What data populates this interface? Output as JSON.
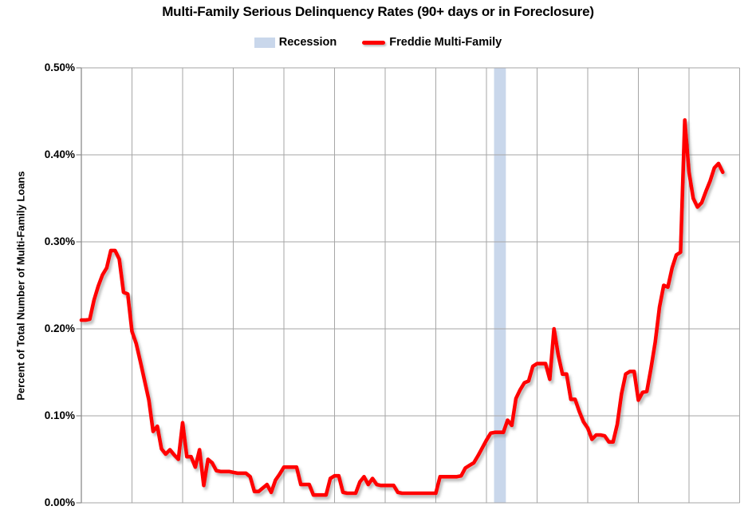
{
  "title": "Multi-Family Serious Delinquency Rates (90+ days or in Foreclosure)",
  "legend": {
    "recession_label": "Recession",
    "series_label": "Freddie Multi-Family"
  },
  "y_axis": {
    "title": "Percent of Total Number of Multi-Family Loans",
    "tick_labels": [
      "0.50%",
      "0.40%",
      "0.30%",
      "0.20%",
      "0.10%",
      "0.00%"
    ]
  },
  "colors": {
    "series_line": "#ff0000",
    "recession_band": "#c9d7eb",
    "gridline": "#a6a6a6",
    "axis_line": "#8c8c8c",
    "text": "#000000",
    "background": "#ffffff"
  },
  "chart_data": {
    "type": "line",
    "title": "Multi-Family Serious Delinquency Rates (90+ days or in Foreclosure)",
    "ylabel": "Percent of Total Number of Multi-Family Loans",
    "y_unit": "percent",
    "ylim": [
      0.0,
      0.5
    ],
    "y_tick_step": 0.1,
    "x_axis_labels_visible": false,
    "x_span_months": 156,
    "x_gridline_every_months": 12,
    "grid": true,
    "legend_position": "top",
    "series": [
      {
        "name": "Freddie Multi-Family",
        "color": "#ff0000",
        "cadence": "monthly",
        "values_pct": [
          0.21,
          0.21,
          0.211,
          0.233,
          0.249,
          0.262,
          0.27,
          0.29,
          0.29,
          0.28,
          0.242,
          0.24,
          0.197,
          0.183,
          0.162,
          0.14,
          0.118,
          0.082,
          0.088,
          0.062,
          0.056,
          0.061,
          0.055,
          0.05,
          0.092,
          0.053,
          0.053,
          0.041,
          0.061,
          0.02,
          0.05,
          0.046,
          0.037,
          0.036,
          0.036,
          0.036,
          0.035,
          0.034,
          0.034,
          0.034,
          0.03,
          0.013,
          0.013,
          0.017,
          0.021,
          0.012,
          0.026,
          0.033,
          0.041,
          0.041,
          0.041,
          0.041,
          0.021,
          0.021,
          0.021,
          0.009,
          0.009,
          0.009,
          0.009,
          0.028,
          0.031,
          0.031,
          0.012,
          0.011,
          0.011,
          0.011,
          0.024,
          0.03,
          0.021,
          0.028,
          0.021,
          0.02,
          0.02,
          0.02,
          0.02,
          0.012,
          0.011,
          0.011,
          0.011,
          0.011,
          0.011,
          0.011,
          0.011,
          0.011,
          0.011,
          0.03,
          0.03,
          0.03,
          0.03,
          0.03,
          0.031,
          0.04,
          0.043,
          0.046,
          0.054,
          0.063,
          0.072,
          0.08,
          0.081,
          0.081,
          0.081,
          0.095,
          0.089,
          0.12,
          0.13,
          0.138,
          0.14,
          0.157,
          0.16,
          0.16,
          0.16,
          0.142,
          0.2,
          0.17,
          0.148,
          0.148,
          0.119,
          0.119,
          0.105,
          0.093,
          0.086,
          0.073,
          0.078,
          0.078,
          0.077,
          0.07,
          0.07,
          0.09,
          0.125,
          0.148,
          0.151,
          0.151,
          0.118,
          0.127,
          0.128,
          0.155,
          0.185,
          0.225,
          0.25,
          0.248,
          0.27,
          0.285,
          0.288,
          0.44,
          0.38,
          0.35,
          0.34,
          0.345,
          0.358,
          0.37,
          0.385,
          0.39,
          0.38
        ]
      }
    ],
    "recession_bands": [
      {
        "start_month": 97.8,
        "end_month": 100.6,
        "color": "#c9d7eb",
        "label": "Recession"
      }
    ]
  }
}
